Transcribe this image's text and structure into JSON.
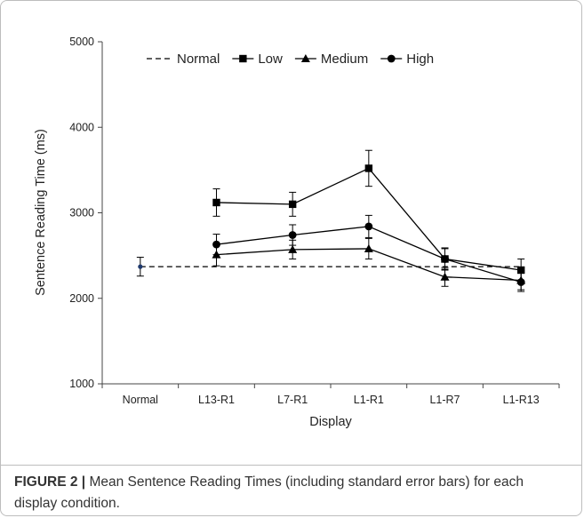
{
  "chart_data": {
    "type": "line",
    "xlabel": "Display",
    "ylabel": "Sentence Reading Time (ms)",
    "categories": [
      "Normal",
      "L13-R1",
      "L7-R1",
      "L1-R1",
      "L1-R7",
      "L1-R13"
    ],
    "ylim": [
      1000,
      5000
    ],
    "yticks": [
      1000,
      2000,
      3000,
      4000,
      5000
    ],
    "legend_position": "top",
    "normal": {
      "name": "Normal",
      "value": 2370,
      "error": 110
    },
    "series": [
      {
        "name": "Low",
        "marker": "square",
        "values": [
          null,
          3120,
          3100,
          3520,
          2460,
          2330
        ],
        "errors": [
          null,
          160,
          140,
          210,
          120,
          130
        ]
      },
      {
        "name": "Medium",
        "marker": "triangle",
        "values": [
          null,
          2510,
          2570,
          2580,
          2250,
          2210
        ],
        "errors": [
          null,
          130,
          110,
          120,
          110,
          110
        ]
      },
      {
        "name": "High",
        "marker": "circle",
        "values": [
          null,
          2630,
          2740,
          2840,
          2460,
          2190
        ],
        "errors": [
          null,
          120,
          120,
          130,
          130,
          110
        ]
      }
    ],
    "colors": {
      "line": "#000000",
      "normal_marker": "#1f3a6e"
    }
  },
  "caption": {
    "lead": "FIGURE 2 |",
    "text": " Mean Sentence Reading Times (including standard error bars) for each display condition."
  }
}
